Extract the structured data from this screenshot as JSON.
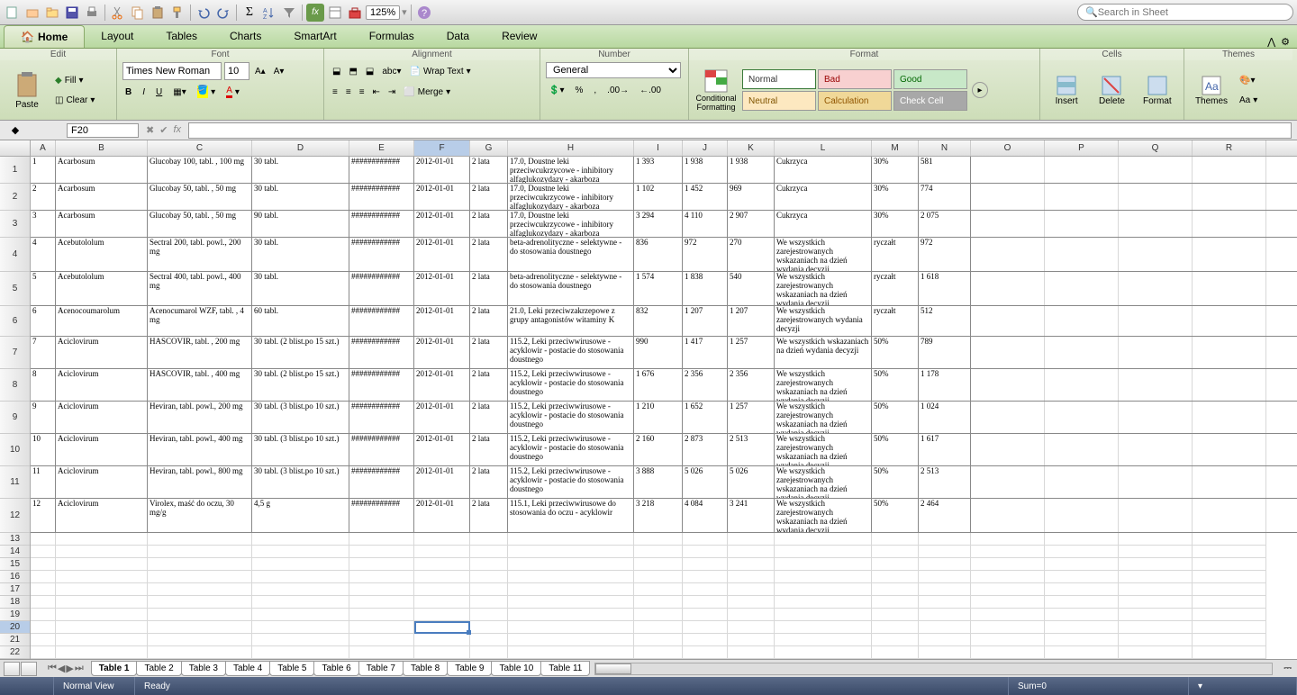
{
  "toolbar": {
    "zoom": "125%",
    "search_placeholder": "Search in Sheet"
  },
  "tabs": [
    "Home",
    "Layout",
    "Tables",
    "Charts",
    "SmartArt",
    "Formulas",
    "Data",
    "Review"
  ],
  "active_tab": "Home",
  "ribbon": {
    "groups": [
      "Edit",
      "Font",
      "Alignment",
      "Number",
      "Format",
      "Cells",
      "Themes"
    ],
    "paste": "Paste",
    "fill": "Fill",
    "clear": "Clear",
    "font_name": "Times New Roman",
    "font_size": "10",
    "wrap": "Wrap Text",
    "merge": "Merge",
    "number_format": "General",
    "cond": "Conditional Formatting",
    "styles": {
      "normal": "Normal",
      "bad": "Bad",
      "good": "Good",
      "neutral": "Neutral",
      "calc": "Calculation",
      "check": "Check Cell"
    },
    "insert": "Insert",
    "delete": "Delete",
    "format": "Format",
    "themes": "Themes",
    "aa": "Aa"
  },
  "cell_ref": "F20",
  "columns": [
    {
      "l": "A",
      "w": 28
    },
    {
      "l": "B",
      "w": 102
    },
    {
      "l": "C",
      "w": 116
    },
    {
      "l": "D",
      "w": 108
    },
    {
      "l": "E",
      "w": 72
    },
    {
      "l": "F",
      "w": 62
    },
    {
      "l": "G",
      "w": 42
    },
    {
      "l": "H",
      "w": 140
    },
    {
      "l": "I",
      "w": 54
    },
    {
      "l": "J",
      "w": 50
    },
    {
      "l": "K",
      "w": 52
    },
    {
      "l": "L",
      "w": 108
    },
    {
      "l": "M",
      "w": 52
    },
    {
      "l": "N",
      "w": 58
    },
    {
      "l": "O",
      "w": 82
    },
    {
      "l": "P",
      "w": 82
    },
    {
      "l": "Q",
      "w": 82
    },
    {
      "l": "R",
      "w": 82
    }
  ],
  "data_rows": [
    {
      "h": 30,
      "c": [
        "1",
        "Acarbosum",
        "Glucobay 100, tabl. , 100 mg",
        "30 tabl.",
        "############",
        "2012-01-01",
        "2 lata",
        "17.0, Doustne leki przeciwcukrzycowe - inhibitory alfaglukozydazy - akarboza",
        "1 393",
        "1 938",
        "1 938",
        "Cukrzyca",
        "30%",
        "581"
      ]
    },
    {
      "h": 30,
      "c": [
        "2",
        "Acarbosum",
        "Glucobay 50, tabl. , 50 mg",
        "30 tabl.",
        "############",
        "2012-01-01",
        "2 lata",
        "17.0, Doustne leki przeciwcukrzycowe - inhibitory alfaglukozydazy - akarboza",
        "1 102",
        "1 452",
        "969",
        "Cukrzyca",
        "30%",
        "774"
      ]
    },
    {
      "h": 30,
      "c": [
        "3",
        "Acarbosum",
        "Glucobay 50, tabl. , 50 mg",
        "90 tabl.",
        "############",
        "2012-01-01",
        "2 lata",
        "17.0, Doustne leki przeciwcukrzycowe - inhibitory alfaglukozydazy - akarboza",
        "3 294",
        "4 110",
        "2 907",
        "Cukrzyca",
        "30%",
        "2 075"
      ]
    },
    {
      "h": 38,
      "c": [
        "4",
        "Acebutololum",
        "Sectral 200, tabl. powl., 200 mg",
        "30 tabl.",
        "############",
        "2012-01-01",
        "2 lata",
        "beta-adrenolityczne - selektywne - do stosowania doustnego",
        "836",
        "972",
        "270",
        "We wszystkich zarejestrowanych wskazaniach na dzień wydania decyzji",
        "ryczałt",
        "972"
      ]
    },
    {
      "h": 38,
      "c": [
        "5",
        "Acebutololum",
        "Sectral 400, tabl. powl., 400 mg",
        "30 tabl.",
        "############",
        "2012-01-01",
        "2 lata",
        "beta-adrenolityczne - selektywne - do stosowania doustnego",
        "1 574",
        "1 838",
        "540",
        "We wszystkich zarejestrowanych wskazaniach na dzień wydania decyzji",
        "ryczałt",
        "1 618"
      ]
    },
    {
      "h": 34,
      "c": [
        "6",
        "Acenocoumarolum",
        "Acenocumarol WZF, tabl. , 4 mg",
        "60 tabl.",
        "############",
        "2012-01-01",
        "2 lata",
        "21.0, Leki przeciwzakrzepowe z grupy antagonistów witaminy K",
        "832",
        "1 207",
        "1 207",
        "We wszystkich zarejestrowanych wydania decyzji",
        "ryczałt",
        "512"
      ]
    },
    {
      "h": 36,
      "c": [
        "7",
        "Aciclovirum",
        "HASCOVIR, tabl. , 200 mg",
        "30 tabl. (2 blist.po 15 szt.)",
        "############",
        "2012-01-01",
        "2 lata",
        "115.2, Leki przeciwwirusowe - acyklowir - postacie do stosowania doustnego",
        "990",
        "1 417",
        "1 257",
        "We wszystkich wskazaniach na dzień wydania decyzji",
        "50%",
        "789"
      ]
    },
    {
      "h": 36,
      "c": [
        "8",
        "Aciclovirum",
        "HASCOVIR, tabl. , 400 mg",
        "30 tabl. (2 blist.po 15 szt.)",
        "############",
        "2012-01-01",
        "2 lata",
        "115.2, Leki przeciwwirusowe - acyklowir - postacie do stosowania doustnego",
        "1 676",
        "2 356",
        "2 356",
        "We wszystkich zarejestrowanych wskazaniach na dzień wydania decyzji",
        "50%",
        "1 178"
      ]
    },
    {
      "h": 36,
      "c": [
        "9",
        "Aciclovirum",
        "Heviran, tabl. powl., 200 mg",
        "30 tabl. (3 blist.po 10 szt.)",
        "############",
        "2012-01-01",
        "2 lata",
        "115.2, Leki przeciwwirusowe - acyklowir - postacie do stosowania doustnego",
        "1 210",
        "1 652",
        "1 257",
        "We wszystkich zarejestrowanych wskazaniach na dzień wydania decyzji",
        "50%",
        "1 024"
      ]
    },
    {
      "h": 36,
      "c": [
        "10",
        "Aciclovirum",
        "Heviran, tabl. powl., 400 mg",
        "30 tabl. (3 blist.po 10 szt.)",
        "############",
        "2012-01-01",
        "2 lata",
        "115.2, Leki przeciwwirusowe - acyklowir - postacie do stosowania doustnego",
        "2 160",
        "2 873",
        "2 513",
        "We wszystkich zarejestrowanych wskazaniach na dzień wydania decyzji",
        "50%",
        "1 617"
      ]
    },
    {
      "h": 36,
      "c": [
        "11",
        "Aciclovirum",
        "Heviran, tabl. powl., 800 mg",
        "30 tabl. (3 blist.po 10 szt.)",
        "############",
        "2012-01-01",
        "2 lata",
        "115.2, Leki przeciwwirusowe - acyklowir - postacie do stosowania doustnego",
        "3 888",
        "5 026",
        "5 026",
        "We wszystkich zarejestrowanych wskazaniach na dzień wydania decyzji",
        "50%",
        "2 513"
      ]
    },
    {
      "h": 38,
      "c": [
        "12",
        "Aciclovirum",
        "Virolex, maść do oczu, 30 mg/g",
        "4,5 g",
        "############",
        "2012-01-01",
        "2 lata",
        "115.1, Leki przeciwwirusowe do stosowania do oczu - acyklowir",
        "3 218",
        "4 084",
        "3 241",
        "We wszystkich zarejestrowanych wskazaniach na dzień wydania decyzji",
        "50%",
        "2 464"
      ]
    }
  ],
  "empty_rows": [
    14,
    15,
    16,
    17,
    18,
    19,
    20,
    21,
    22
  ],
  "sheet_tabs": [
    "Table 1",
    "Table 2",
    "Table 3",
    "Table 4",
    "Table 5",
    "Table 6",
    "Table 7",
    "Table 8",
    "Table 9",
    "Table 10",
    "Table 11"
  ],
  "active_sheet": 0,
  "status": {
    "view": "Normal View",
    "ready": "Ready",
    "sum": "Sum=0"
  },
  "selection": {
    "col": "F",
    "row": 20
  }
}
